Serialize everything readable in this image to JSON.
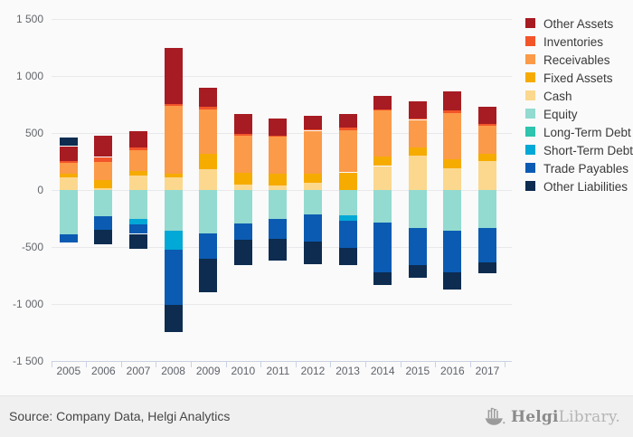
{
  "chart_data": {
    "type": "bar",
    "stacked": true,
    "title": "",
    "xlabel": "",
    "ylabel": "",
    "ylim": [
      -1500,
      1500
    ],
    "ytick_interval": 500,
    "ytick_labels": [
      "1 500",
      "1 000",
      "500",
      "0",
      "-500",
      "-1 000",
      "-1 500"
    ],
    "grid": true,
    "legend_position": "right",
    "categories": [
      "2005",
      "2006",
      "2007",
      "2008",
      "2009",
      "2010",
      "2011",
      "2012",
      "2013",
      "2014",
      "2015",
      "2016",
      "2017"
    ],
    "series": [
      {
        "name": "Other Assets",
        "color": "#A61C22",
        "values": [
          130,
          190,
          145,
          490,
          165,
          170,
          145,
          120,
          120,
          120,
          145,
          170,
          150
        ]
      },
      {
        "name": "Inventories",
        "color": "#F2552A",
        "values": [
          20,
          40,
          20,
          20,
          20,
          20,
          15,
          10,
          20,
          10,
          15,
          20,
          20
        ]
      },
      {
        "name": "Receivables",
        "color": "#FB9A49",
        "values": [
          95,
          165,
          185,
          590,
          390,
          325,
          320,
          375,
          370,
          400,
          240,
          405,
          245
        ]
      },
      {
        "name": "Fixed Assets",
        "color": "#F6AB00",
        "values": [
          30,
          70,
          40,
          35,
          135,
          105,
          105,
          85,
          155,
          85,
          75,
          80,
          60
        ]
      },
      {
        "name": "Cash",
        "color": "#FBD88E",
        "values": [
          110,
          15,
          125,
          110,
          185,
          45,
          40,
          60,
          0,
          210,
          300,
          190,
          255
        ]
      },
      {
        "name": "Equity",
        "color": "#93DAD0",
        "values": [
          -385,
          -230,
          -250,
          -355,
          -380,
          -290,
          -250,
          -210,
          -225,
          -285,
          -330,
          -360,
          -335
        ]
      },
      {
        "name": "Long-Term Debt",
        "color": "#2EC4AE",
        "values": [
          0,
          0,
          0,
          0,
          0,
          0,
          0,
          0,
          0,
          0,
          0,
          0,
          0
        ]
      },
      {
        "name": "Short-Term Debt",
        "color": "#02A8D6",
        "values": [
          0,
          0,
          -50,
          -170,
          0,
          0,
          0,
          0,
          -45,
          0,
          0,
          0,
          0
        ]
      },
      {
        "name": "Trade Payables",
        "color": "#0B5BB2",
        "values": [
          -75,
          -120,
          -85,
          -485,
          -225,
          -145,
          -180,
          -240,
          -240,
          -435,
          -325,
          -365,
          -300
        ]
      },
      {
        "name": "Other Liabilities",
        "color": "#0D2C50",
        "values": [
          75,
          -125,
          -130,
          -235,
          -290,
          -225,
          -190,
          -205,
          -145,
          -110,
          -115,
          -145,
          -95
        ]
      }
    ]
  },
  "footer": {
    "source_text": "Source: Company Data, Helgi Analytics",
    "brand_bold": "Helgi",
    "brand_light": "Library."
  }
}
